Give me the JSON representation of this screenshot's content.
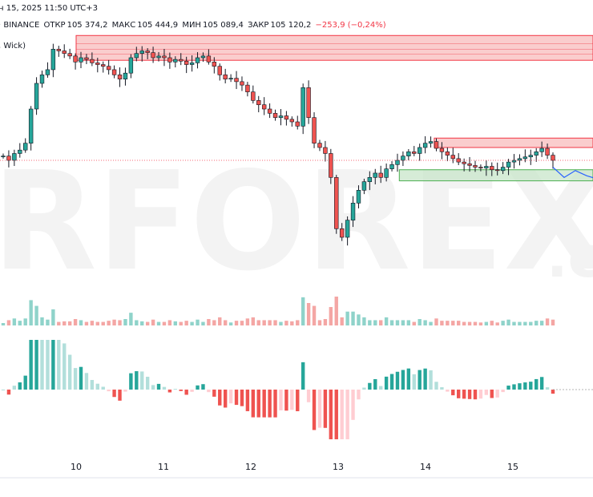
{
  "header": {
    "date_time": "н 15, 2025 11:50 UTC+3",
    "exchange": "· BINANCE",
    "open_label": "ОТКР",
    "open_value": "105 374,2",
    "high_label": "МАКС",
    "high_value": "105 444,9",
    "low_label": "МИН",
    "low_value": "105 089,4",
    "close_label": "ЗАКР",
    "close_value": "105 120,2",
    "change": "−253,9 (−0,24%)",
    "indicator": ", Wick)"
  },
  "watermark": {
    "text": "RFOREX",
    "suffix": ".c"
  },
  "colors": {
    "bull": "#26a69a",
    "bear": "#ef5350",
    "bull_light": "#b2dfdb",
    "bear_light": "#ffcdd2",
    "zone_red_fill": "#f8bcbc",
    "zone_red_line": "#f23645",
    "zone_green_fill": "#c8e6c9",
    "zone_green_line": "#4caf50",
    "projection": "#2962ff",
    "price_line": "#f23645"
  },
  "chart_data": {
    "type": "candlestick",
    "title": "",
    "x_tick_labels": [
      "10",
      "11",
      "12",
      "13",
      "14",
      "15"
    ],
    "y_range_approx": [
      103000,
      106000
    ],
    "series": [
      {
        "name": "",
        "kind": "ohlc",
        "start": 104550,
        "levels": [
          104550,
          104500,
          104580,
          104620,
          104700,
          105100,
          105400,
          105500,
          105560,
          105800,
          105780,
          105750,
          105720,
          105650,
          105700,
          105680,
          105640,
          105620,
          105600,
          105560,
          105500,
          105450,
          105520,
          105700,
          105750,
          105780,
          105760,
          105700,
          105720,
          105700,
          105650,
          105680,
          105660,
          105620,
          105640,
          105700,
          105720,
          105650,
          105600,
          105500,
          105450,
          105460,
          105420,
          105380,
          105300,
          105200,
          105150,
          105100,
          105050,
          105000,
          105020,
          104980,
          104950,
          104900,
          105350,
          105000,
          104700,
          104650,
          104580,
          104300,
          103700,
          103600,
          103800,
          104000,
          104150,
          104250,
          104300,
          104350,
          104300,
          104400,
          104450,
          104500,
          104550,
          104600,
          104580,
          104650,
          104700,
          104720,
          104640,
          104600,
          104560,
          104520,
          104480,
          104460,
          104440,
          104420,
          104410,
          104430,
          104390,
          104380,
          104420,
          104480,
          104500,
          104520,
          104540,
          104560,
          104600,
          104640,
          104560,
          104500
        ]
      }
    ],
    "volume_series": [],
    "oscillator_series": [],
    "zones": [
      {
        "kind": "resistance",
        "price_top": 105960,
        "price_bottom": 105670,
        "from_day": 10.0
      },
      {
        "kind": "resistance",
        "price_top": 104760,
        "price_bottom": 104650,
        "from_day": 14.1
      },
      {
        "kind": "support",
        "price_top": 104390,
        "price_bottom": 104260,
        "from_day": 13.7
      }
    ],
    "projection": [
      104420,
      104300,
      104380,
      104320,
      104280
    ],
    "last_price": 104500,
    "grid": false,
    "legend": "none"
  }
}
